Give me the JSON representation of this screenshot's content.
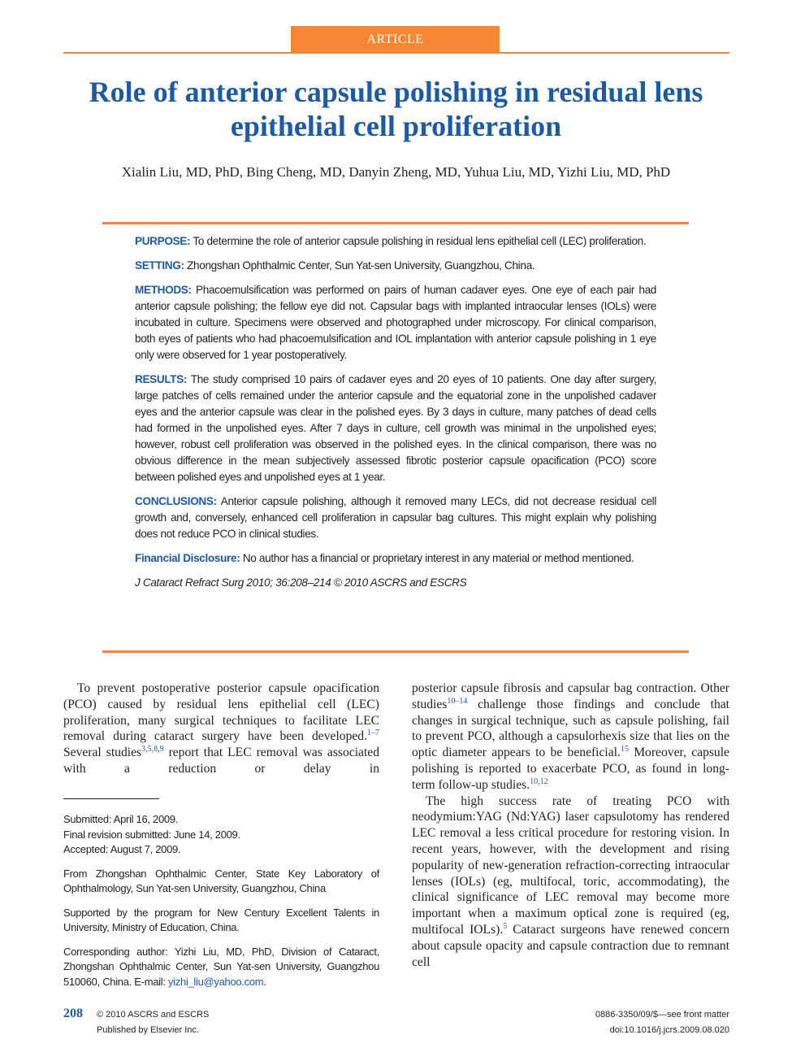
{
  "header": {
    "tab": "ARTICLE",
    "title_lines": [
      "Role of anterior capsule polishing in residual lens",
      "epithelial cell proliferation"
    ],
    "authors": "Xialin Liu, MD, PhD, Bing Cheng, MD, Danyin Zheng, MD, Yuhua Liu, MD, Yizhi Liu, MD, PhD"
  },
  "abstract": {
    "sections": [
      {
        "label": "PURPOSE:",
        "text": "To determine the role of anterior capsule polishing in residual lens epithelial cell (LEC) proliferation."
      },
      {
        "label": "SETTING:",
        "text": "Zhongshan Ophthalmic Center, Sun Yat-sen University, Guangzhou, China."
      },
      {
        "label": "METHODS:",
        "text": "Phacoemulsification was performed on pairs of human cadaver eyes. One eye of each pair had anterior capsule polishing; the fellow eye did not. Capsular bags with implanted intraocular lenses (IOLs) were incubated in culture. Specimens were observed and photographed under microscopy. For clinical comparison, both eyes of patients who had phacoemulsification and IOL implantation with anterior capsule polishing in 1 eye only were observed for 1 year postoperatively."
      },
      {
        "label": "RESULTS:",
        "text": "The study comprised 10 pairs of cadaver eyes and 20 eyes of 10 patients. One day after surgery, large patches of cells remained under the anterior capsule and the equatorial zone in the unpolished cadaver eyes and the anterior capsule was clear in the polished eyes. By 3 days in culture, many patches of dead cells had formed in the unpolished eyes. After 7 days in culture, cell growth was minimal in the unpolished eyes; however, robust cell proliferation was observed in the polished eyes. In the clinical comparison, there was no obvious difference in the mean subjectively assessed fibrotic posterior capsule opacification (PCO) score between polished eyes and unpolished eyes at 1 year."
      },
      {
        "label": "CONCLUSIONS:",
        "text": "Anterior capsule polishing, although it removed many LECs, did not decrease residual cell growth and, conversely, enhanced cell proliferation in capsular bag cultures. This might explain why polishing does not reduce PCO in clinical studies."
      },
      {
        "label": "Financial Disclosure:",
        "text": "No author has a financial or proprietary interest in any material or method mentioned."
      }
    ],
    "citation": "J Cataract Refract Surg 2010; 36:208–214 © 2010 ASCRS and ESCRS"
  },
  "body": {
    "left": [
      [
        {
          "text": "To prevent postoperative posterior capsule opacification (PCO) caused by residual lens epithelial cell (LEC) proliferation, many surgical techniques to facilitate LEC removal during cataract surgery have been developed."
        },
        {
          "sup": "1–7"
        },
        {
          "text": " Several studies"
        },
        {
          "sup": "3,5,8,9"
        },
        {
          "text": " report that LEC removal was associated with a reduction or delay in"
        }
      ]
    ],
    "right": [
      [
        {
          "text": "posterior capsule fibrosis and capsular bag contraction. Other studies"
        },
        {
          "sup": "10–14"
        },
        {
          "text": " challenge those findings and conclude that changes in surgical technique, such as capsule polishing, fail to prevent PCO, although a capsulorhexis size that lies on the optic diameter appears to be beneficial."
        },
        {
          "sup": "15"
        },
        {
          "text": " Moreover, capsule polishing is reported to exacerbate PCO, as found in long-term follow-up studies."
        },
        {
          "sup": "10,12"
        }
      ],
      [
        {
          "text": "The high success rate of treating PCO with neodymium:YAG (Nd:YAG) laser capsulotomy has rendered LEC removal a less critical procedure for restoring vision. In recent years, however, with the development and rising popularity of new-generation refraction-correcting intraocular lenses (IOLs) (eg, multifocal, toric, accommodating), the clinical significance of LEC removal may become more important when a maximum optical zone is required (eg, multifocal IOLs)."
        },
        {
          "sup": "5"
        },
        {
          "text": " Cataract surgeons have renewed concern about capsule opacity and capsule contraction due to remnant cell"
        }
      ]
    ]
  },
  "footnotes": {
    "dates": [
      "Submitted: April 16, 2009.",
      "Final revision submitted: June 14, 2009.",
      "Accepted: August 7, 2009."
    ],
    "affiliation": "From Zhongshan Ophthalmic Center, State Key Laboratory of Ophthalmology, Sun Yat-sen University, Guangzhou, China",
    "support": "Supported by the program for New Century Excellent Talents in University, Ministry of Education, China.",
    "correspondence": {
      "text": "Corresponding author: Yizhi Liu, MD, PhD, Division of Cataract, Zhongshan Ophthalmic Center, Sun Yat-sen University, Guangzhou 510060, China. E-mail: ",
      "email": "yizhi_liu@yahoo.com",
      "end": "."
    }
  },
  "footer": {
    "page": "208",
    "copyright": "© 2010 ASCRS and ESCRS",
    "publisher": "Published by Elsevier Inc.",
    "issn": "0886-3350/09/$—see front matter",
    "doi": "doi:10.1016/j.jcrs.2009.08.020"
  }
}
